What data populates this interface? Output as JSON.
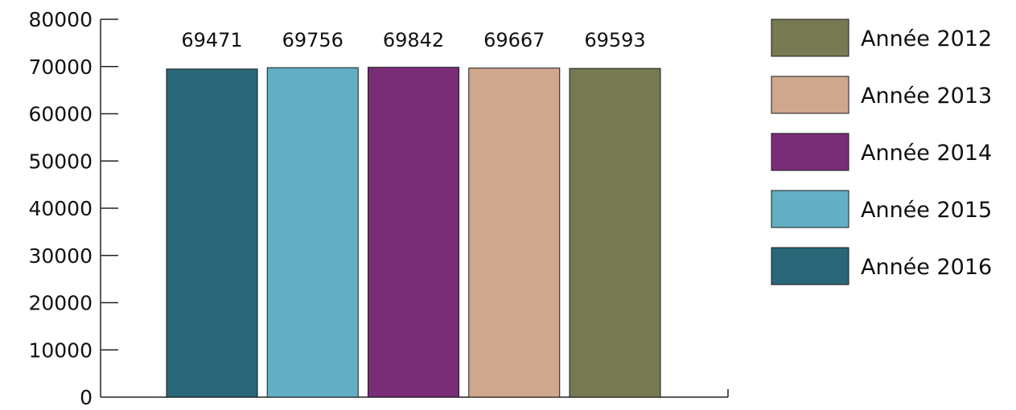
{
  "chart_data": {
    "type": "bar",
    "title": "",
    "xlabel": "",
    "ylabel": "",
    "ylim": [
      0,
      80000
    ],
    "yticks": [
      0,
      10000,
      20000,
      30000,
      40000,
      50000,
      60000,
      70000,
      80000
    ],
    "grid": false,
    "legend_position": "right",
    "series": [
      {
        "name": "Année 2016",
        "value": 69471,
        "color": "#296778"
      },
      {
        "name": "Année 2015",
        "value": 69756,
        "color": "#63afc4"
      },
      {
        "name": "Année 2014",
        "value": 69842,
        "color": "#7a2d77"
      },
      {
        "name": "Année 2013",
        "value": 69667,
        "color": "#cfa78d"
      },
      {
        "name": "Année 2012",
        "value": 69593,
        "color": "#767952"
      }
    ],
    "legend_order": [
      "Année 2012",
      "Année 2013",
      "Année 2014",
      "Année 2015",
      "Année 2016"
    ]
  }
}
